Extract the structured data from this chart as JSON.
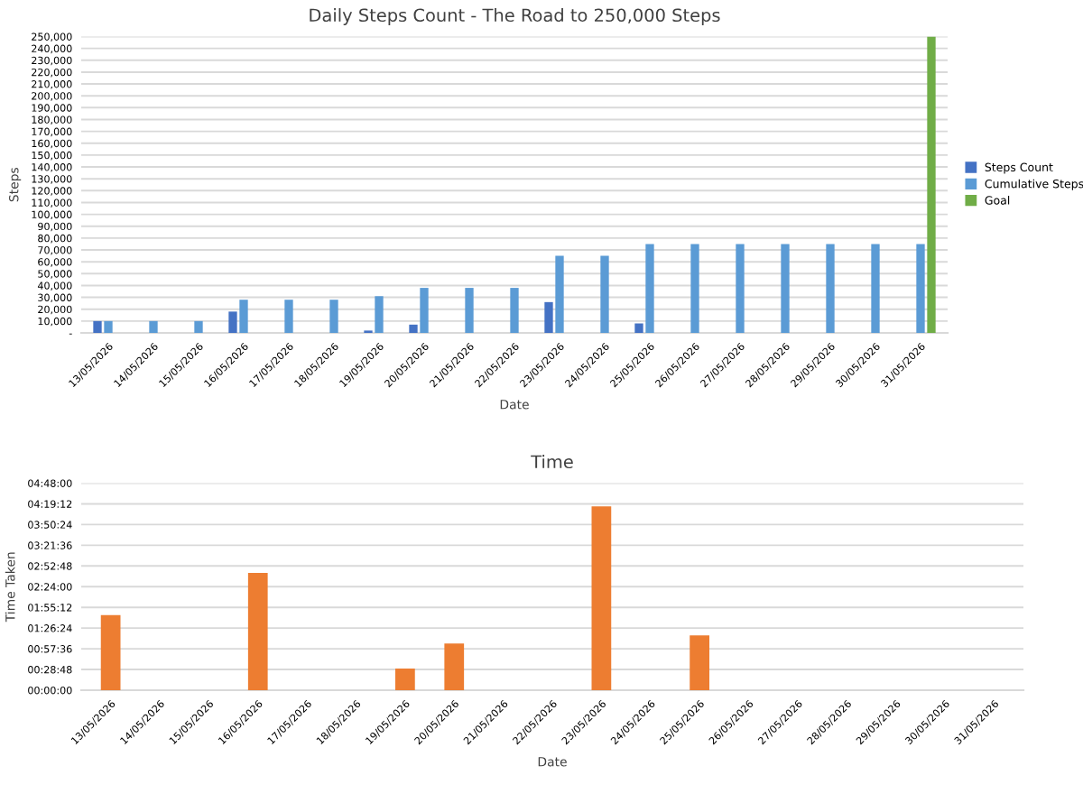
{
  "chart_data": [
    {
      "type": "bar",
      "title": "Daily Steps Count - The Road to 250,000 Steps",
      "xlabel": "Date",
      "ylabel": "Steps",
      "categories": [
        "13/05/2026",
        "14/05/2026",
        "15/05/2026",
        "16/05/2026",
        "17/05/2026",
        "18/05/2026",
        "19/05/2026",
        "20/05/2026",
        "21/05/2026",
        "22/05/2026",
        "23/05/2026",
        "24/05/2026",
        "25/05/2026",
        "26/05/2026",
        "27/05/2026",
        "28/05/2026",
        "29/05/2026",
        "30/05/2026",
        "31/05/2026"
      ],
      "series": [
        {
          "name": "Steps Count",
          "color": "#4472c4",
          "values": [
            10000,
            null,
            null,
            18000,
            null,
            null,
            2000,
            7000,
            null,
            null,
            26000,
            null,
            8000,
            null,
            null,
            null,
            null,
            null,
            null
          ]
        },
        {
          "name": "Cumulative Steps",
          "color": "#5b9bd5",
          "values": [
            10000,
            10000,
            10000,
            28000,
            28000,
            28000,
            31000,
            38000,
            38000,
            38000,
            65000,
            65000,
            75000,
            75000,
            75000,
            75000,
            75000,
            75000,
            75000
          ]
        },
        {
          "name": "Goal",
          "color": "#70ad47",
          "values": [
            null,
            null,
            null,
            null,
            null,
            null,
            null,
            null,
            null,
            null,
            null,
            null,
            null,
            null,
            null,
            null,
            null,
            null,
            250000
          ]
        }
      ],
      "ylim": [
        0,
        250000
      ],
      "yticks": [
        {
          "value": 0,
          "label": "-"
        },
        {
          "value": 10000,
          "label": "10,000"
        },
        {
          "value": 20000,
          "label": "20,000"
        },
        {
          "value": 30000,
          "label": "30,000"
        },
        {
          "value": 40000,
          "label": "40,000"
        },
        {
          "value": 50000,
          "label": "50,000"
        },
        {
          "value": 60000,
          "label": "60,000"
        },
        {
          "value": 70000,
          "label": "70,000"
        },
        {
          "value": 80000,
          "label": "80,000"
        },
        {
          "value": 90000,
          "label": "90,000"
        },
        {
          "value": 100000,
          "label": "100,000"
        },
        {
          "value": 110000,
          "label": "110,000"
        },
        {
          "value": 120000,
          "label": "120,000"
        },
        {
          "value": 130000,
          "label": "130,000"
        },
        {
          "value": 140000,
          "label": "140,000"
        },
        {
          "value": 150000,
          "label": "150,000"
        },
        {
          "value": 160000,
          "label": "160,000"
        },
        {
          "value": 170000,
          "label": "170,000"
        },
        {
          "value": 180000,
          "label": "180,000"
        },
        {
          "value": 190000,
          "label": "190,000"
        },
        {
          "value": 200000,
          "label": "200,000"
        },
        {
          "value": 210000,
          "label": "210,000"
        },
        {
          "value": 220000,
          "label": "220,000"
        },
        {
          "value": 230000,
          "label": "230,000"
        },
        {
          "value": 240000,
          "label": "240,000"
        },
        {
          "value": 250000,
          "label": "250,000"
        }
      ],
      "grid": "y",
      "legend": "right"
    },
    {
      "type": "bar",
      "title": "Time",
      "xlabel": "Date",
      "ylabel": "Time Taken",
      "categories": [
        "13/05/2026",
        "14/05/2026",
        "15/05/2026",
        "16/05/2026",
        "17/05/2026",
        "18/05/2026",
        "19/05/2026",
        "20/05/2026",
        "21/05/2026",
        "22/05/2026",
        "23/05/2026",
        "24/05/2026",
        "25/05/2026",
        "26/05/2026",
        "27/05/2026",
        "28/05/2026",
        "29/05/2026",
        "30/05/2026",
        "31/05/2026"
      ],
      "series": [
        {
          "color": "#ed7d31",
          "values": [
            1.74,
            null,
            null,
            2.72,
            null,
            null,
            0.5,
            1.08,
            null,
            null,
            4.26,
            null,
            1.27,
            null,
            null,
            null,
            null,
            null,
            null
          ]
        }
      ],
      "ylim": [
        0,
        4.8
      ],
      "yticks": [
        {
          "value": 0,
          "label": "00:00:00"
        },
        {
          "value": 0.48,
          "label": "00:28:48"
        },
        {
          "value": 0.96,
          "label": "00:57:36"
        },
        {
          "value": 1.44,
          "label": "01:26:24"
        },
        {
          "value": 1.92,
          "label": "01:55:12"
        },
        {
          "value": 2.4,
          "label": "02:24:00"
        },
        {
          "value": 2.88,
          "label": "02:52:48"
        },
        {
          "value": 3.36,
          "label": "03:21:36"
        },
        {
          "value": 3.84,
          "label": "03:50:24"
        },
        {
          "value": 4.32,
          "label": "04:19:12"
        },
        {
          "value": 4.8,
          "label": "04:48:00"
        }
      ],
      "grid": "y"
    }
  ]
}
